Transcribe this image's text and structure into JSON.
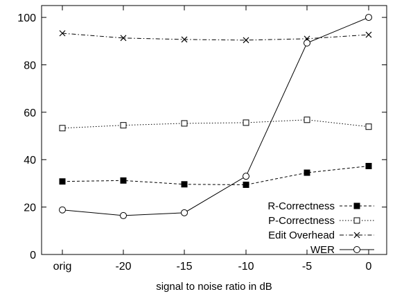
{
  "chart_data": {
    "type": "line",
    "title": "",
    "xlabel": "signal to noise ratio in dB",
    "ylabel": "",
    "categories": [
      "orig",
      "-20",
      "-15",
      "-10",
      "-5",
      "0"
    ],
    "yticks": [
      "0",
      "20",
      "40",
      "60",
      "80",
      "100"
    ],
    "ylim": [
      0,
      105
    ],
    "grid": false,
    "legend_position": "bottom-right",
    "series": [
      {
        "name": "R-Correctness",
        "marker": "filled-square",
        "dash": "dashed",
        "values": [
          30.8,
          31.2,
          29.6,
          29.4,
          34.5,
          37.3
        ]
      },
      {
        "name": "P-Correctness",
        "marker": "open-square",
        "dash": "dotted",
        "values": [
          53.3,
          54.5,
          55.3,
          55.6,
          56.8,
          53.9
        ]
      },
      {
        "name": "Edit Overhead",
        "marker": "cross",
        "dash": "dashdot",
        "values": [
          93.3,
          91.3,
          90.7,
          90.4,
          91.0,
          92.7
        ]
      },
      {
        "name": "WER",
        "marker": "circle",
        "dash": "solid",
        "values": [
          18.8,
          16.4,
          17.6,
          33.0,
          89.2,
          100.0
        ]
      }
    ]
  }
}
